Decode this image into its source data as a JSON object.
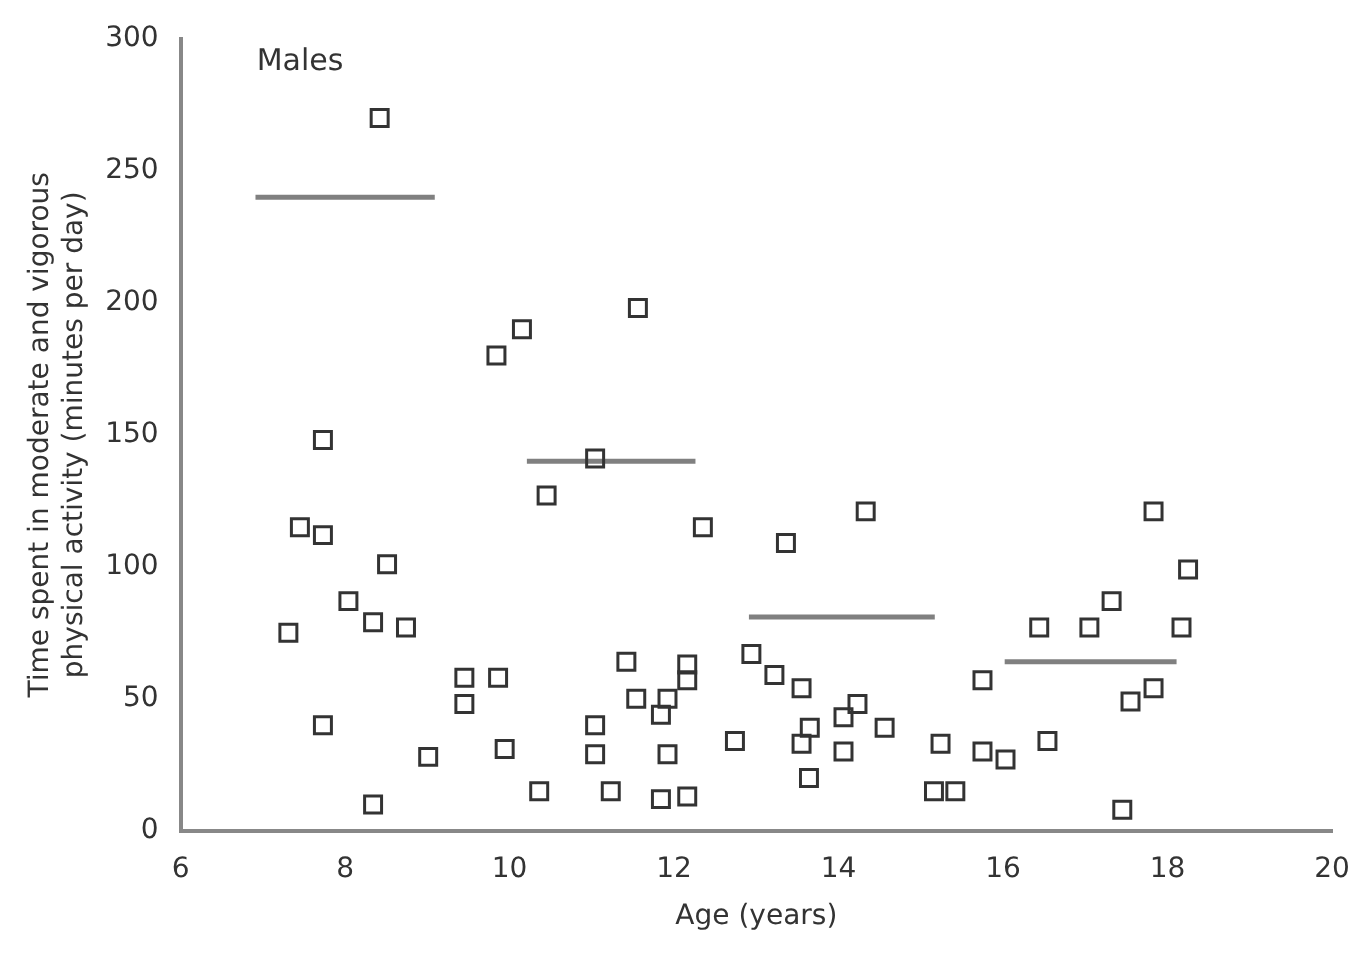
{
  "chart_data": {
    "type": "scatter",
    "xlabel": "Age (years)",
    "ylabel": "Time spent in moderate and vigorous physical activity (minutes per day)",
    "annotations": [
      "Males"
    ],
    "xlim": [
      6,
      20
    ],
    "xticks": [
      6,
      8,
      10,
      12,
      14,
      16,
      18,
      20
    ],
    "ylim": [
      0,
      300
    ],
    "yticks": [
      0,
      50,
      100,
      150,
      200,
      250,
      300
    ],
    "grid": false,
    "legend": false,
    "series": [
      {
        "marker": "square",
        "color": "#333333",
        "x": [
          8.42,
          7.73,
          9.84,
          10.15,
          11.56,
          11.04,
          10.45,
          7.45,
          7.73,
          12.35,
          8.51,
          8.04,
          8.34,
          8.74,
          7.31,
          11.42,
          9.45,
          9.86,
          9.45,
          11.54,
          12.16,
          12.16,
          11.92,
          11.84,
          7.73,
          11.04,
          11.04,
          9.01,
          9.94,
          11.92,
          10.36,
          11.23,
          11.84,
          12.16,
          8.34,
          12.74,
          12.94,
          13.36,
          14.33,
          17.83,
          18.25,
          17.32,
          16.44,
          17.05,
          18.17,
          13.22,
          13.55,
          15.75,
          17.83,
          17.55,
          14.23,
          14.06,
          13.65,
          14.56,
          13.55,
          14.06,
          15.24,
          16.54,
          15.75,
          16.03,
          13.64,
          15.16,
          15.42,
          17.45
        ],
        "values": [
          270,
          148,
          180,
          190,
          198,
          141,
          127,
          115,
          112,
          115,
          101,
          87,
          79,
          77,
          75,
          64,
          58,
          58,
          48,
          50,
          63,
          57,
          50,
          44,
          40,
          40,
          29,
          28,
          31,
          29,
          15,
          15,
          12,
          13,
          10,
          34,
          67,
          109,
          121,
          121,
          99,
          87,
          77,
          77,
          77,
          59,
          54,
          57,
          54,
          49,
          48,
          43,
          39,
          39,
          33,
          30,
          33,
          34,
          30,
          27,
          20,
          15,
          15,
          8
        ]
      },
      {
        "type": "line",
        "color": "#808080",
        "marker": "none",
        "x": [
          6.91,
          9.09
        ],
        "values": [
          240,
          240
        ]
      },
      {
        "type": "line",
        "color": "#808080",
        "marker": "none",
        "x": [
          10.21,
          12.26
        ],
        "values": [
          140,
          140
        ]
      },
      {
        "type": "line",
        "color": "#808080",
        "marker": "none",
        "x": [
          12.91,
          15.17
        ],
        "values": [
          81,
          81
        ]
      },
      {
        "type": "line",
        "color": "#808080",
        "marker": "none",
        "x": [
          16.02,
          18.11
        ],
        "values": [
          64,
          64
        ]
      }
    ]
  }
}
